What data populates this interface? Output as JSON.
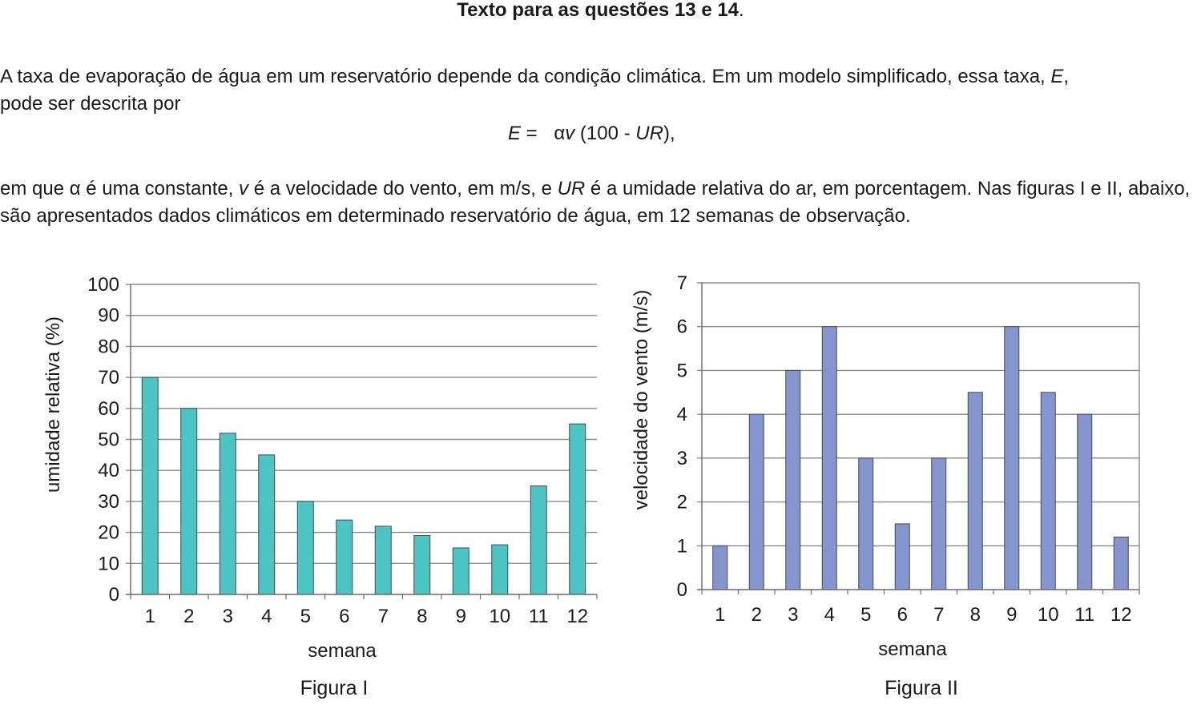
{
  "heading": {
    "prefix": "Texto para as questões 13 e 14",
    "suffix": "."
  },
  "paragraph1": {
    "text": "A taxa de evaporação de água em um reservatório depende da condição climática. Em um modelo simplificado, essa taxa, ",
    "var_e": "E",
    "text_end": ",",
    "line2": "pode ser descrita por"
  },
  "formula": {
    "lhs": "E",
    "eq": " = ",
    "alpha": "α",
    "v": "v",
    "open": " (100 - ",
    "ur": "UR",
    "close": "),"
  },
  "paragraph2": {
    "t1": "em que ",
    "alpha": "α",
    "t2": " é uma constante, ",
    "v": "v",
    "t3": " é a velocidade do vento, em m/s, e ",
    "ur": "UR",
    "t4": " é a umidade relativa do ar, em porcentagem. Nas figuras I e II, abaixo, são apresentados dados climáticos em determinado reservatório de água, em 12 semanas de observação."
  },
  "chart_data": [
    {
      "type": "bar",
      "caption": "Figura I",
      "xlabel": "semana",
      "ylabel": "umidade relativa (%)",
      "categories": [
        "1",
        "2",
        "3",
        "4",
        "5",
        "6",
        "7",
        "8",
        "9",
        "10",
        "11",
        "12"
      ],
      "values": [
        70,
        60,
        52,
        45,
        30,
        24,
        22,
        19,
        15,
        16,
        35,
        55
      ],
      "yticks": [
        0,
        10,
        20,
        30,
        40,
        50,
        60,
        70,
        80,
        90,
        100
      ],
      "ylim": [
        0,
        100
      ],
      "grid": true,
      "color": "#4bc4c3"
    },
    {
      "type": "bar",
      "caption": "Figura II",
      "xlabel": "semana",
      "ylabel": "velocidade do vento (m/s)",
      "categories": [
        "1",
        "2",
        "3",
        "4",
        "5",
        "6",
        "7",
        "8",
        "9",
        "10",
        "11",
        "12"
      ],
      "values": [
        1,
        4,
        5,
        6,
        3,
        1.5,
        3,
        4.5,
        6,
        4.5,
        4,
        1.2
      ],
      "yticks": [
        0,
        1,
        2,
        3,
        4,
        5,
        6,
        7
      ],
      "ylim": [
        0,
        7
      ],
      "grid": true,
      "color": "#8595cf"
    }
  ]
}
